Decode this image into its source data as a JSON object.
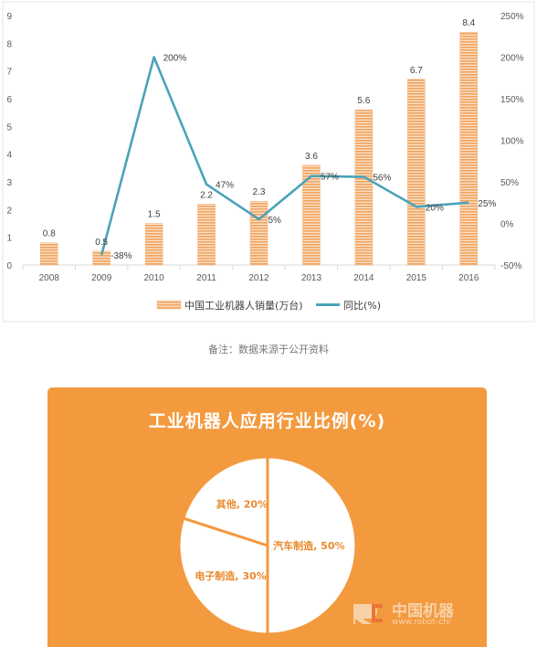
{
  "chart_data": [
    {
      "type": "bar+line",
      "categories": [
        "2008",
        "2009",
        "2010",
        "2011",
        "2012",
        "2013",
        "2014",
        "2015",
        "2016"
      ],
      "series": [
        {
          "name": "中国工业机器人销量(万台)",
          "kind": "bar",
          "axis": "left",
          "values": [
            0.8,
            0.5,
            1.5,
            2.2,
            2.3,
            3.6,
            5.6,
            6.7,
            8.4
          ],
          "labels": [
            "0.8",
            "0.5",
            "1.5",
            "2.2",
            "2.3",
            "3.6",
            "5.6",
            "6.7",
            "8.4"
          ]
        },
        {
          "name": "同比(%)",
          "kind": "line",
          "axis": "right",
          "values": [
            null,
            -38,
            200,
            47,
            5,
            57,
            56,
            20,
            25
          ],
          "labels": [
            "",
            "-38%",
            "200%",
            "47%",
            "5%",
            "57%",
            "56%",
            "20%",
            "25%"
          ]
        }
      ],
      "ylim_left": [
        0,
        9
      ],
      "yticks_left": [
        "0",
        "1",
        "2",
        "3",
        "4",
        "5",
        "6",
        "7",
        "8",
        "9"
      ],
      "ylim_right": [
        -50,
        250
      ],
      "yticks_right": [
        "-50%",
        "0%",
        "50%",
        "100%",
        "150%",
        "200%",
        "250%"
      ],
      "legend_position": "bottom",
      "grid": false,
      "colors": {
        "bar": "#f0a35e",
        "line": "#4ba3b8"
      }
    },
    {
      "type": "pie",
      "title": "工业机器人应用行业比例(%)",
      "slices": [
        {
          "label": "汽车制造, 50%",
          "value": 50
        },
        {
          "label": "电子制造, 30%",
          "value": 30
        },
        {
          "label": "其他, 20%",
          "value": 20
        }
      ],
      "colors": {
        "panel": "#f39a3f",
        "slice": "#ffffff",
        "text": "#e98a2e"
      }
    }
  ],
  "note": "备注：数据来源于公开资料",
  "watermark": {
    "cn": "中国机器",
    "url": "www.robot-chi"
  }
}
